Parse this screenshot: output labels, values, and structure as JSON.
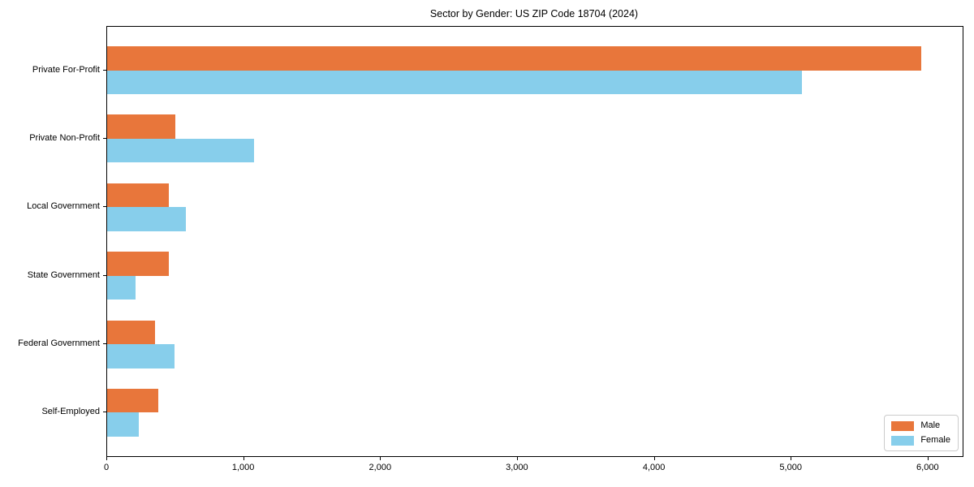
{
  "title": "Sector by Gender: US ZIP Code 18704 (2024)",
  "chart_data": {
    "type": "bar",
    "orientation": "horizontal",
    "title": "Sector by Gender: US ZIP Code 18704 (2024)",
    "xlabel": "",
    "ylabel": "",
    "categories": [
      "Private For-Profit",
      "Private Non-Profit",
      "Local Government",
      "State Government",
      "Federal Government",
      "Self-Employed"
    ],
    "series": [
      {
        "name": "Male",
        "color": "#E8763B",
        "values": [
          5950,
          495,
          450,
          450,
          350,
          375
        ]
      },
      {
        "name": "Female",
        "color": "#87CEEB",
        "values": [
          5075,
          1075,
          575,
          205,
          490,
          230
        ]
      }
    ],
    "xlim": [
      0,
      6250
    ],
    "xticks": [
      0,
      1000,
      2000,
      3000,
      4000,
      5000,
      6000
    ],
    "xtick_labels": [
      "0",
      "1,000",
      "2,000",
      "3,000",
      "4,000",
      "5,000",
      "6,000"
    ],
    "grid": false,
    "legend_position": "lower right"
  },
  "legend": {
    "male_label": "Male",
    "female_label": "Female"
  }
}
